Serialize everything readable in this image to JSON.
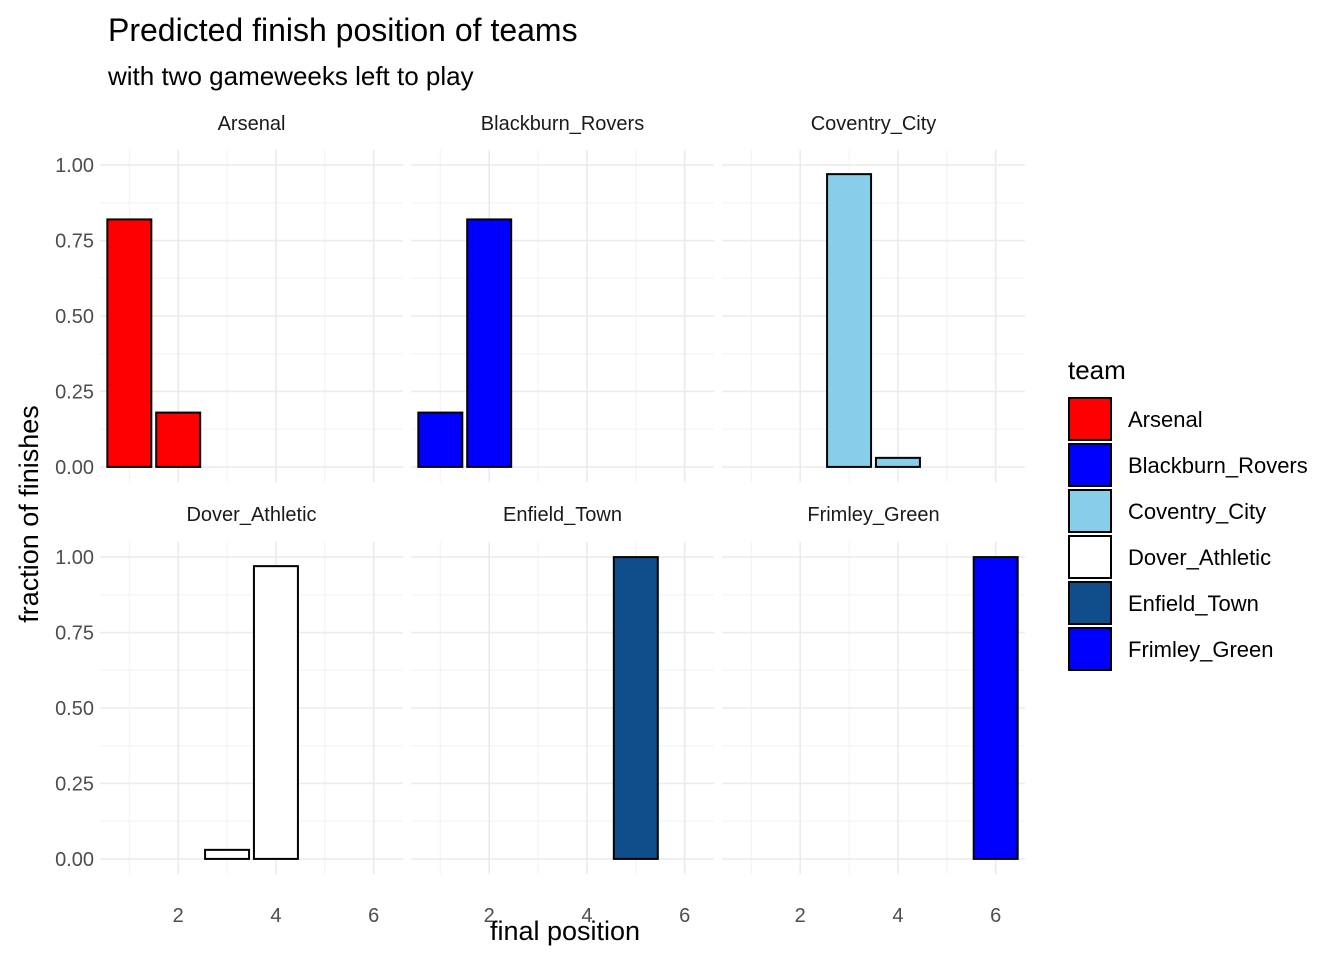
{
  "chart_data": {
    "type": "bar",
    "title": "Predicted finish position of teams",
    "subtitle": "with two gameweeks left to play",
    "xlabel": "final position",
    "ylabel": "fraction of finishes",
    "xlim": [
      0.4,
      6.6
    ],
    "ylim": [
      -0.05,
      1.05
    ],
    "x_ticks": [
      2,
      4,
      6
    ],
    "y_ticks": [
      0,
      0.25,
      0.5,
      0.75,
      1.0
    ],
    "y_tick_labels": [
      "0.00",
      "0.25",
      "0.50",
      "0.75",
      "1.00"
    ],
    "grid": true,
    "facet_ncol": 3,
    "legend": {
      "title": "team",
      "position": "right",
      "entries": [
        "Arsenal",
        "Blackburn_Rovers",
        "Coventry_City",
        "Dover_Athletic",
        "Enfield_Town",
        "Frimley_Green"
      ]
    },
    "series": [
      {
        "name": "Arsenal",
        "color": "#FF0000",
        "points": [
          {
            "x": 1,
            "y": 0.82
          },
          {
            "x": 2,
            "y": 0.18
          }
        ]
      },
      {
        "name": "Blackburn_Rovers",
        "color": "#0000FF",
        "points": [
          {
            "x": 1,
            "y": 0.18
          },
          {
            "x": 2,
            "y": 0.82
          }
        ]
      },
      {
        "name": "Coventry_City",
        "color": "#87CEEB",
        "points": [
          {
            "x": 3,
            "y": 0.97
          },
          {
            "x": 4,
            "y": 0.03
          }
        ]
      },
      {
        "name": "Dover_Athletic",
        "color": "#FFFFFF",
        "points": [
          {
            "x": 3,
            "y": 0.03
          },
          {
            "x": 4,
            "y": 0.97
          }
        ]
      },
      {
        "name": "Enfield_Town",
        "color": "#104E8B",
        "points": [
          {
            "x": 5,
            "y": 1.0
          }
        ]
      },
      {
        "name": "Frimley_Green",
        "color": "#0000FF",
        "points": [
          {
            "x": 6,
            "y": 1.0
          }
        ]
      }
    ]
  }
}
